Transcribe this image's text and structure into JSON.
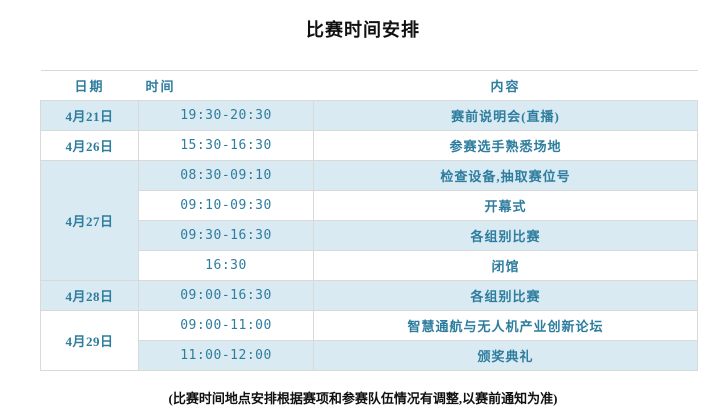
{
  "title": "比赛时间安排",
  "colors": {
    "accent_text": "#2e7d9e",
    "row_shade": "#d9eaf2",
    "border": "#d9d9d9",
    "title_text": "#111111"
  },
  "table": {
    "headers": [
      "日期",
      "时间",
      "内容"
    ],
    "rows": [
      {
        "date": "4月21日",
        "date_rowspan": 1,
        "time": "19:30-20:30",
        "content": "赛前说明会(直播)"
      },
      {
        "date": "4月26日",
        "date_rowspan": 1,
        "time": "15:30-16:30",
        "content": "参赛选手熟悉场地"
      },
      {
        "date": "4月27日",
        "date_rowspan": 4,
        "time": "08:30-09:10",
        "content": "检查设备,抽取赛位号"
      },
      {
        "date": null,
        "time": "09:10-09:30",
        "content": "开幕式"
      },
      {
        "date": null,
        "time": "09:30-16:30",
        "content": "各组别比赛"
      },
      {
        "date": null,
        "time": "16:30",
        "content": "闭馆"
      },
      {
        "date": "4月28日",
        "date_rowspan": 1,
        "time": "09:00-16:30",
        "content": "各组别比赛"
      },
      {
        "date": "4月29日",
        "date_rowspan": 2,
        "time": "09:00-11:00",
        "content": "智慧通航与无人机产业创新论坛"
      },
      {
        "date": null,
        "time": "11:00-12:00",
        "content": "颁奖典礼"
      }
    ]
  },
  "footnote": "(比赛时间地点安排根据赛项和参赛队伍情况有调整,以赛前通知为准)"
}
